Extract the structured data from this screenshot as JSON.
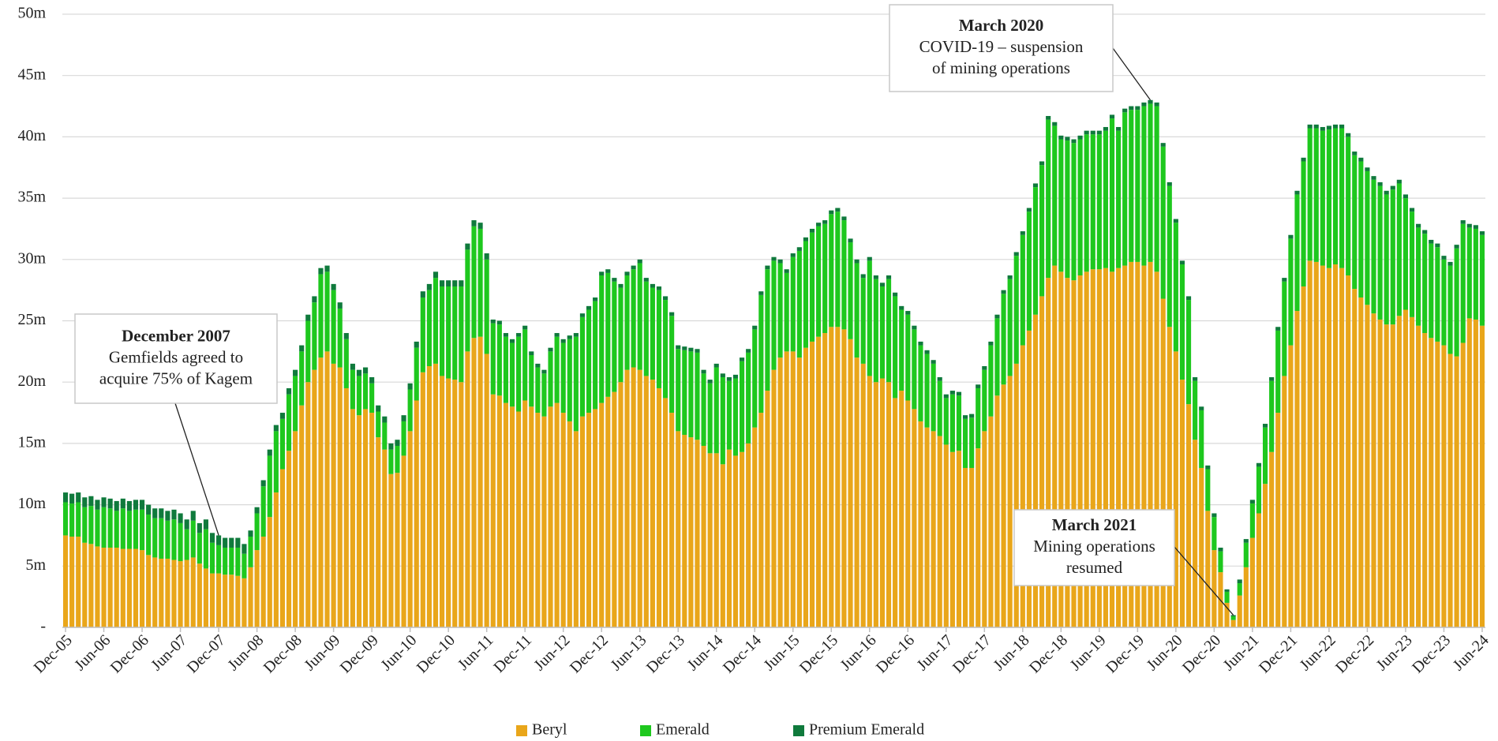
{
  "chart_data": {
    "type": "stacked_bar",
    "categories": [
      "Dec-05",
      null,
      null,
      null,
      null,
      null,
      "Jun-06",
      null,
      null,
      null,
      null,
      null,
      "Dec-06",
      null,
      null,
      null,
      null,
      null,
      "Jun-07",
      null,
      null,
      null,
      null,
      null,
      "Dec-07",
      null,
      null,
      null,
      null,
      null,
      "Jun-08",
      null,
      null,
      null,
      null,
      null,
      "Dec-08",
      null,
      null,
      null,
      null,
      null,
      "Jun-09",
      null,
      null,
      null,
      null,
      null,
      "Dec-09",
      null,
      null,
      null,
      null,
      null,
      "Jun-10",
      null,
      null,
      null,
      null,
      null,
      "Dec-10",
      null,
      null,
      null,
      null,
      null,
      "Jun-11",
      null,
      null,
      null,
      null,
      null,
      "Dec-11",
      null,
      null,
      null,
      null,
      null,
      "Jun-12",
      null,
      null,
      null,
      null,
      null,
      "Dec-12",
      null,
      null,
      null,
      null,
      null,
      "Jun-13",
      null,
      null,
      null,
      null,
      null,
      "Dec-13",
      null,
      null,
      null,
      null,
      null,
      "Jun-14",
      null,
      null,
      null,
      null,
      null,
      "Dec-14",
      null,
      null,
      null,
      null,
      null,
      "Jun-15",
      null,
      null,
      null,
      null,
      null,
      "Dec-15",
      null,
      null,
      null,
      null,
      null,
      "Jun-16",
      null,
      null,
      null,
      null,
      null,
      "Dec-16",
      null,
      null,
      null,
      null,
      null,
      "Jun-17",
      null,
      null,
      null,
      null,
      null,
      "Dec-17",
      null,
      null,
      null,
      null,
      null,
      "Jun-18",
      null,
      null,
      null,
      null,
      null,
      "Dec-18",
      null,
      null,
      null,
      null,
      null,
      "Jun-19",
      null,
      null,
      null,
      null,
      null,
      "Dec-19",
      null,
      null,
      null,
      null,
      null,
      "Jun-20",
      null,
      null,
      null,
      null,
      null,
      "Dec-20",
      null,
      null,
      null,
      null,
      null,
      "Jun-21",
      null,
      null,
      null,
      null,
      null,
      "Dec-21",
      null,
      null,
      null,
      null,
      null,
      "Jun-22",
      null,
      null,
      null,
      null,
      null,
      "Dec-22",
      null,
      null,
      null,
      null,
      null,
      "Jun-23",
      null,
      null,
      null,
      null,
      null,
      "Dec-23",
      null,
      null,
      null,
      null,
      null,
      "Jun-24"
    ],
    "series": [
      {
        "name": "Beryl",
        "color": "#e9a61a",
        "values": [
          7.5,
          7.4,
          7.4,
          6.9,
          6.8,
          6.6,
          6.5,
          6.5,
          6.5,
          6.4,
          6.4,
          6.4,
          6.3,
          5.9,
          5.7,
          5.6,
          5.6,
          5.5,
          5.4,
          5.5,
          5.7,
          5.2,
          4.8,
          4.4,
          4.4,
          4.3,
          4.3,
          4.2,
          4.0,
          4.9,
          6.3,
          7.4,
          9.0,
          11.0,
          12.9,
          14.4,
          16.0,
          18.1,
          20.0,
          21.0,
          22.0,
          22.5,
          21.5,
          21.2,
          19.5,
          17.8,
          17.3,
          17.8,
          17.5,
          15.5,
          14.5,
          12.5,
          12.6,
          14.0,
          16.0,
          18.5,
          20.8,
          21.3,
          21.5,
          20.5,
          20.3,
          20.2,
          20.0,
          22.5,
          23.6,
          23.7,
          22.3,
          19.0,
          18.9,
          18.3,
          18.0,
          17.6,
          18.5,
          18.0,
          17.5,
          17.2,
          18.0,
          18.3,
          17.5,
          16.8,
          16.0,
          17.2,
          17.5,
          17.8,
          18.3,
          18.8,
          19.2,
          20.0,
          21.0,
          21.2,
          21.0,
          20.5,
          20.2,
          19.5,
          18.7,
          17.5,
          16.0,
          15.7,
          15.5,
          15.3,
          14.8,
          14.2,
          14.2,
          13.3,
          14.5,
          14.0,
          14.3,
          15.0,
          16.3,
          17.5,
          19.3,
          21.0,
          22.0,
          22.5,
          22.5,
          22.0,
          22.8,
          23.3,
          23.7,
          24.0,
          24.5,
          24.5,
          24.3,
          23.5,
          22.0,
          21.5,
          20.5,
          20.0,
          20.3,
          20.0,
          18.7,
          19.3,
          18.5,
          17.8,
          16.8,
          16.3,
          16.0,
          15.6,
          14.9,
          14.3,
          14.4,
          13.0,
          13.0,
          14.6,
          16.0,
          17.2,
          18.9,
          19.8,
          20.5,
          21.5,
          23.0,
          24.2,
          25.5,
          27.0,
          28.5,
          29.5,
          29.0,
          28.5,
          28.3,
          28.7,
          29.0,
          29.2,
          29.2,
          29.3,
          29.0,
          29.3,
          29.5,
          29.8,
          29.8,
          29.5,
          29.8,
          29.0,
          26.8,
          24.5,
          22.5,
          20.2,
          18.2,
          15.3,
          13.0,
          9.5,
          6.3,
          4.5,
          2.0,
          0.6,
          2.6,
          4.9,
          7.3,
          9.3,
          11.7,
          14.3,
          17.5,
          20.5,
          23.0,
          25.8,
          27.8,
          29.9,
          29.8,
          29.5,
          29.3,
          29.6,
          29.3,
          28.7,
          27.6,
          26.9,
          26.3,
          25.6,
          25.1,
          24.7,
          24.7,
          25.4,
          25.9,
          25.3,
          24.6,
          24.0,
          23.6,
          23.3,
          23.0,
          22.3,
          22.1,
          23.2,
          25.2,
          25.1,
          24.6
        ]
      },
      {
        "name": "Emerald",
        "color": "#1ec81e",
        "values": [
          2.7,
          2.7,
          2.8,
          2.9,
          3.1,
          3.0,
          3.3,
          3.2,
          3.0,
          3.3,
          3.1,
          3.2,
          3.3,
          3.3,
          3.2,
          3.3,
          3.1,
          3.3,
          3.1,
          2.5,
          3.0,
          2.5,
          3.2,
          2.5,
          2.3,
          2.2,
          2.2,
          2.3,
          2.0,
          2.5,
          3.0,
          4.1,
          5.0,
          5.0,
          4.1,
          4.6,
          4.5,
          4.4,
          5.0,
          5.5,
          6.8,
          6.5,
          6.0,
          4.8,
          4.0,
          3.2,
          3.2,
          2.9,
          2.4,
          2.1,
          2.2,
          2.0,
          2.2,
          2.8,
          3.4,
          4.3,
          6.1,
          6.2,
          7.0,
          7.3,
          7.5,
          7.6,
          7.8,
          8.3,
          9.1,
          8.8,
          7.7,
          5.8,
          5.8,
          5.4,
          5.2,
          6.1,
          5.8,
          4.2,
          3.7,
          3.5,
          4.5,
          5.4,
          5.7,
          6.7,
          7.7,
          8.1,
          8.4,
          8.8,
          10.4,
          10.1,
          9.0,
          7.7,
          7.7,
          8.0,
          8.7,
          7.7,
          7.5,
          8.0,
          8.0,
          7.9,
          6.7,
          6.9,
          7.0,
          7.1,
          5.9,
          5.7,
          7.0,
          7.1,
          5.6,
          6.3,
          7.4,
          7.4,
          8.0,
          9.6,
          9.9,
          8.9,
          7.7,
          6.4,
          7.7,
          8.7,
          8.7,
          8.9,
          9.0,
          8.9,
          9.2,
          9.4,
          8.9,
          7.9,
          7.7,
          7.0,
          9.4,
          8.4,
          7.5,
          8.4,
          8.3,
          6.6,
          7.0,
          6.5,
          6.2,
          6.0,
          5.5,
          4.5,
          3.8,
          4.7,
          4.5,
          4.0,
          4.1,
          4.9,
          5.0,
          5.8,
          6.3,
          7.4,
          7.9,
          8.8,
          9.0,
          9.7,
          10.4,
          10.7,
          12.9,
          11.4,
          10.8,
          11.2,
          11.2,
          11.1,
          11.2,
          11.0,
          11.0,
          11.2,
          12.5,
          11.2,
          12.5,
          12.4,
          12.4,
          13.0,
          12.9,
          13.5,
          12.4,
          11.5,
          10.5,
          9.4,
          8.5,
          4.8,
          4.7,
          3.4,
          2.7,
          1.7,
          0.9,
          0.3,
          1.0,
          2.0,
          2.8,
          3.8,
          4.6,
          5.8,
          6.7,
          7.7,
          8.7,
          9.5,
          10.2,
          10.8,
          10.9,
          11.0,
          11.3,
          11.1,
          11.4,
          11.3,
          10.9,
          11.1,
          10.9,
          10.9,
          10.9,
          10.6,
          11.0,
          10.8,
          9.1,
          8.6,
          8.0,
          8.1,
          7.7,
          7.7,
          7.0,
          7.2,
          8.8,
          9.7,
          7.4,
          7.4,
          7.4
        ]
      },
      {
        "name": "Premium Emerald",
        "color": "#0f7a3c",
        "values": [
          0.8,
          0.8,
          0.8,
          0.8,
          0.8,
          0.8,
          0.8,
          0.8,
          0.8,
          0.8,
          0.8,
          0.8,
          0.8,
          0.8,
          0.8,
          0.8,
          0.8,
          0.8,
          0.8,
          0.8,
          0.8,
          0.8,
          0.8,
          0.8,
          0.8,
          0.8,
          0.8,
          0.8,
          0.8,
          0.5,
          0.5,
          0.5,
          0.5,
          0.5,
          0.5,
          0.5,
          0.5,
          0.5,
          0.5,
          0.5,
          0.5,
          0.5,
          0.5,
          0.5,
          0.5,
          0.5,
          0.5,
          0.5,
          0.5,
          0.5,
          0.5,
          0.5,
          0.5,
          0.5,
          0.5,
          0.5,
          0.5,
          0.5,
          0.5,
          0.5,
          0.5,
          0.5,
          0.5,
          0.5,
          0.5,
          0.5,
          0.5,
          0.3,
          0.3,
          0.3,
          0.3,
          0.3,
          0.3,
          0.3,
          0.3,
          0.3,
          0.3,
          0.3,
          0.3,
          0.3,
          0.3,
          0.3,
          0.3,
          0.3,
          0.3,
          0.3,
          0.3,
          0.3,
          0.3,
          0.3,
          0.3,
          0.3,
          0.3,
          0.3,
          0.3,
          0.3,
          0.3,
          0.3,
          0.3,
          0.3,
          0.3,
          0.3,
          0.3,
          0.3,
          0.3,
          0.3,
          0.3,
          0.3,
          0.3,
          0.3,
          0.3,
          0.3,
          0.3,
          0.3,
          0.3,
          0.3,
          0.3,
          0.3,
          0.3,
          0.3,
          0.3,
          0.3,
          0.3,
          0.3,
          0.3,
          0.3,
          0.3,
          0.3,
          0.3,
          0.3,
          0.3,
          0.3,
          0.3,
          0.3,
          0.3,
          0.3,
          0.3,
          0.3,
          0.3,
          0.3,
          0.3,
          0.3,
          0.3,
          0.3,
          0.3,
          0.3,
          0.3,
          0.3,
          0.3,
          0.3,
          0.3,
          0.3,
          0.3,
          0.3,
          0.3,
          0.3,
          0.3,
          0.3,
          0.3,
          0.3,
          0.3,
          0.3,
          0.3,
          0.3,
          0.3,
          0.3,
          0.3,
          0.3,
          0.3,
          0.3,
          0.3,
          0.3,
          0.3,
          0.3,
          0.3,
          0.3,
          0.3,
          0.3,
          0.3,
          0.3,
          0.3,
          0.3,
          0.2,
          0.1,
          0.3,
          0.3,
          0.3,
          0.3,
          0.3,
          0.3,
          0.3,
          0.3,
          0.3,
          0.3,
          0.3,
          0.3,
          0.3,
          0.3,
          0.3,
          0.3,
          0.3,
          0.3,
          0.3,
          0.3,
          0.3,
          0.3,
          0.3,
          0.3,
          0.3,
          0.3,
          0.3,
          0.3,
          0.3,
          0.3,
          0.3,
          0.3,
          0.3,
          0.3,
          0.3,
          0.3,
          0.3,
          0.3,
          0.3
        ]
      }
    ],
    "ylim": [
      0,
      50
    ],
    "yticks": [
      {
        "value": 0,
        "label": "-"
      },
      {
        "value": 5,
        "label": "5m"
      },
      {
        "value": 10,
        "label": "10m"
      },
      {
        "value": 15,
        "label": "15m"
      },
      {
        "value": 20,
        "label": "20m"
      },
      {
        "value": 25,
        "label": "25m"
      },
      {
        "value": 30,
        "label": "30m"
      },
      {
        "value": 35,
        "label": "35m"
      },
      {
        "value": 40,
        "label": "40m"
      },
      {
        "value": 45,
        "label": "45m"
      },
      {
        "value": 50,
        "label": "50m"
      }
    ],
    "grid": true,
    "legend": "bottom",
    "annotations": [
      {
        "title": "December 2007",
        "text": [
          "Gemfields agreed to",
          "acquire 75% of Kagem"
        ]
      },
      {
        "title": "March 2020",
        "text": [
          "COVID-19 – suspension",
          "of mining operations"
        ]
      },
      {
        "title": "March 2021",
        "text": [
          "Mining operations",
          "resumed"
        ]
      }
    ]
  }
}
